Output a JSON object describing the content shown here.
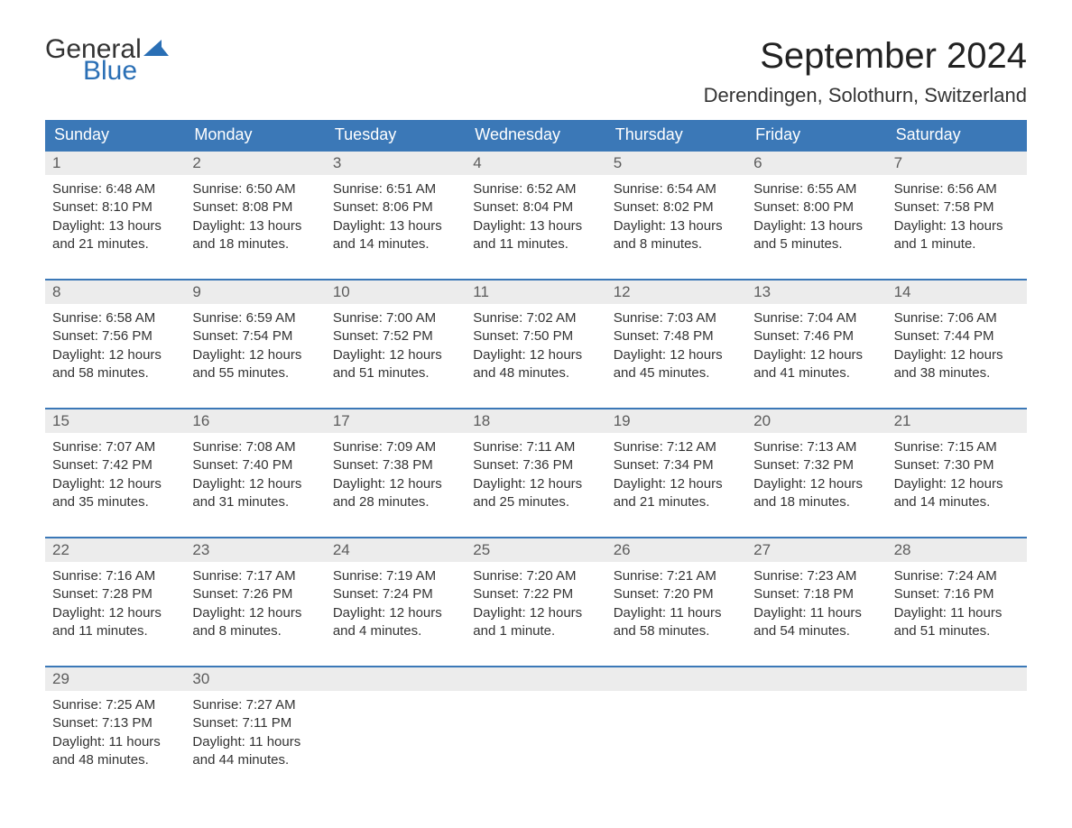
{
  "logo": {
    "word1": "General",
    "word2": "Blue",
    "sail_color": "#2a6fb5",
    "text_color_dark": "#333333"
  },
  "header": {
    "month_title": "September 2024",
    "location": "Derendingen, Solothurn, Switzerland"
  },
  "colors": {
    "header_bg": "#3b78b7",
    "daynum_bg": "#ececec",
    "daynum_text": "#5c5c5c",
    "body_text": "#333333",
    "page_bg": "#ffffff",
    "week_border": "#3b78b7"
  },
  "typography": {
    "month_title_fontsize": 40,
    "location_fontsize": 22,
    "weekday_fontsize": 18,
    "daynum_fontsize": 17,
    "body_fontsize": 15,
    "logo_fontsize": 30
  },
  "weekdays": [
    "Sunday",
    "Monday",
    "Tuesday",
    "Wednesday",
    "Thursday",
    "Friday",
    "Saturday"
  ],
  "weeks": [
    [
      {
        "num": "1",
        "sunrise": "Sunrise: 6:48 AM",
        "sunset": "Sunset: 8:10 PM",
        "day1": "Daylight: 13 hours",
        "day2": "and 21 minutes."
      },
      {
        "num": "2",
        "sunrise": "Sunrise: 6:50 AM",
        "sunset": "Sunset: 8:08 PM",
        "day1": "Daylight: 13 hours",
        "day2": "and 18 minutes."
      },
      {
        "num": "3",
        "sunrise": "Sunrise: 6:51 AM",
        "sunset": "Sunset: 8:06 PM",
        "day1": "Daylight: 13 hours",
        "day2": "and 14 minutes."
      },
      {
        "num": "4",
        "sunrise": "Sunrise: 6:52 AM",
        "sunset": "Sunset: 8:04 PM",
        "day1": "Daylight: 13 hours",
        "day2": "and 11 minutes."
      },
      {
        "num": "5",
        "sunrise": "Sunrise: 6:54 AM",
        "sunset": "Sunset: 8:02 PM",
        "day1": "Daylight: 13 hours",
        "day2": "and 8 minutes."
      },
      {
        "num": "6",
        "sunrise": "Sunrise: 6:55 AM",
        "sunset": "Sunset: 8:00 PM",
        "day1": "Daylight: 13 hours",
        "day2": "and 5 minutes."
      },
      {
        "num": "7",
        "sunrise": "Sunrise: 6:56 AM",
        "sunset": "Sunset: 7:58 PM",
        "day1": "Daylight: 13 hours",
        "day2": "and 1 minute."
      }
    ],
    [
      {
        "num": "8",
        "sunrise": "Sunrise: 6:58 AM",
        "sunset": "Sunset: 7:56 PM",
        "day1": "Daylight: 12 hours",
        "day2": "and 58 minutes."
      },
      {
        "num": "9",
        "sunrise": "Sunrise: 6:59 AM",
        "sunset": "Sunset: 7:54 PM",
        "day1": "Daylight: 12 hours",
        "day2": "and 55 minutes."
      },
      {
        "num": "10",
        "sunrise": "Sunrise: 7:00 AM",
        "sunset": "Sunset: 7:52 PM",
        "day1": "Daylight: 12 hours",
        "day2": "and 51 minutes."
      },
      {
        "num": "11",
        "sunrise": "Sunrise: 7:02 AM",
        "sunset": "Sunset: 7:50 PM",
        "day1": "Daylight: 12 hours",
        "day2": "and 48 minutes."
      },
      {
        "num": "12",
        "sunrise": "Sunrise: 7:03 AM",
        "sunset": "Sunset: 7:48 PM",
        "day1": "Daylight: 12 hours",
        "day2": "and 45 minutes."
      },
      {
        "num": "13",
        "sunrise": "Sunrise: 7:04 AM",
        "sunset": "Sunset: 7:46 PM",
        "day1": "Daylight: 12 hours",
        "day2": "and 41 minutes."
      },
      {
        "num": "14",
        "sunrise": "Sunrise: 7:06 AM",
        "sunset": "Sunset: 7:44 PM",
        "day1": "Daylight: 12 hours",
        "day2": "and 38 minutes."
      }
    ],
    [
      {
        "num": "15",
        "sunrise": "Sunrise: 7:07 AM",
        "sunset": "Sunset: 7:42 PM",
        "day1": "Daylight: 12 hours",
        "day2": "and 35 minutes."
      },
      {
        "num": "16",
        "sunrise": "Sunrise: 7:08 AM",
        "sunset": "Sunset: 7:40 PM",
        "day1": "Daylight: 12 hours",
        "day2": "and 31 minutes."
      },
      {
        "num": "17",
        "sunrise": "Sunrise: 7:09 AM",
        "sunset": "Sunset: 7:38 PM",
        "day1": "Daylight: 12 hours",
        "day2": "and 28 minutes."
      },
      {
        "num": "18",
        "sunrise": "Sunrise: 7:11 AM",
        "sunset": "Sunset: 7:36 PM",
        "day1": "Daylight: 12 hours",
        "day2": "and 25 minutes."
      },
      {
        "num": "19",
        "sunrise": "Sunrise: 7:12 AM",
        "sunset": "Sunset: 7:34 PM",
        "day1": "Daylight: 12 hours",
        "day2": "and 21 minutes."
      },
      {
        "num": "20",
        "sunrise": "Sunrise: 7:13 AM",
        "sunset": "Sunset: 7:32 PM",
        "day1": "Daylight: 12 hours",
        "day2": "and 18 minutes."
      },
      {
        "num": "21",
        "sunrise": "Sunrise: 7:15 AM",
        "sunset": "Sunset: 7:30 PM",
        "day1": "Daylight: 12 hours",
        "day2": "and 14 minutes."
      }
    ],
    [
      {
        "num": "22",
        "sunrise": "Sunrise: 7:16 AM",
        "sunset": "Sunset: 7:28 PM",
        "day1": "Daylight: 12 hours",
        "day2": "and 11 minutes."
      },
      {
        "num": "23",
        "sunrise": "Sunrise: 7:17 AM",
        "sunset": "Sunset: 7:26 PM",
        "day1": "Daylight: 12 hours",
        "day2": "and 8 minutes."
      },
      {
        "num": "24",
        "sunrise": "Sunrise: 7:19 AM",
        "sunset": "Sunset: 7:24 PM",
        "day1": "Daylight: 12 hours",
        "day2": "and 4 minutes."
      },
      {
        "num": "25",
        "sunrise": "Sunrise: 7:20 AM",
        "sunset": "Sunset: 7:22 PM",
        "day1": "Daylight: 12 hours",
        "day2": "and 1 minute."
      },
      {
        "num": "26",
        "sunrise": "Sunrise: 7:21 AM",
        "sunset": "Sunset: 7:20 PM",
        "day1": "Daylight: 11 hours",
        "day2": "and 58 minutes."
      },
      {
        "num": "27",
        "sunrise": "Sunrise: 7:23 AM",
        "sunset": "Sunset: 7:18 PM",
        "day1": "Daylight: 11 hours",
        "day2": "and 54 minutes."
      },
      {
        "num": "28",
        "sunrise": "Sunrise: 7:24 AM",
        "sunset": "Sunset: 7:16 PM",
        "day1": "Daylight: 11 hours",
        "day2": "and 51 minutes."
      }
    ],
    [
      {
        "num": "29",
        "sunrise": "Sunrise: 7:25 AM",
        "sunset": "Sunset: 7:13 PM",
        "day1": "Daylight: 11 hours",
        "day2": "and 48 minutes."
      },
      {
        "num": "30",
        "sunrise": "Sunrise: 7:27 AM",
        "sunset": "Sunset: 7:11 PM",
        "day1": "Daylight: 11 hours",
        "day2": "and 44 minutes."
      },
      {
        "empty": true
      },
      {
        "empty": true
      },
      {
        "empty": true
      },
      {
        "empty": true
      },
      {
        "empty": true
      }
    ]
  ]
}
